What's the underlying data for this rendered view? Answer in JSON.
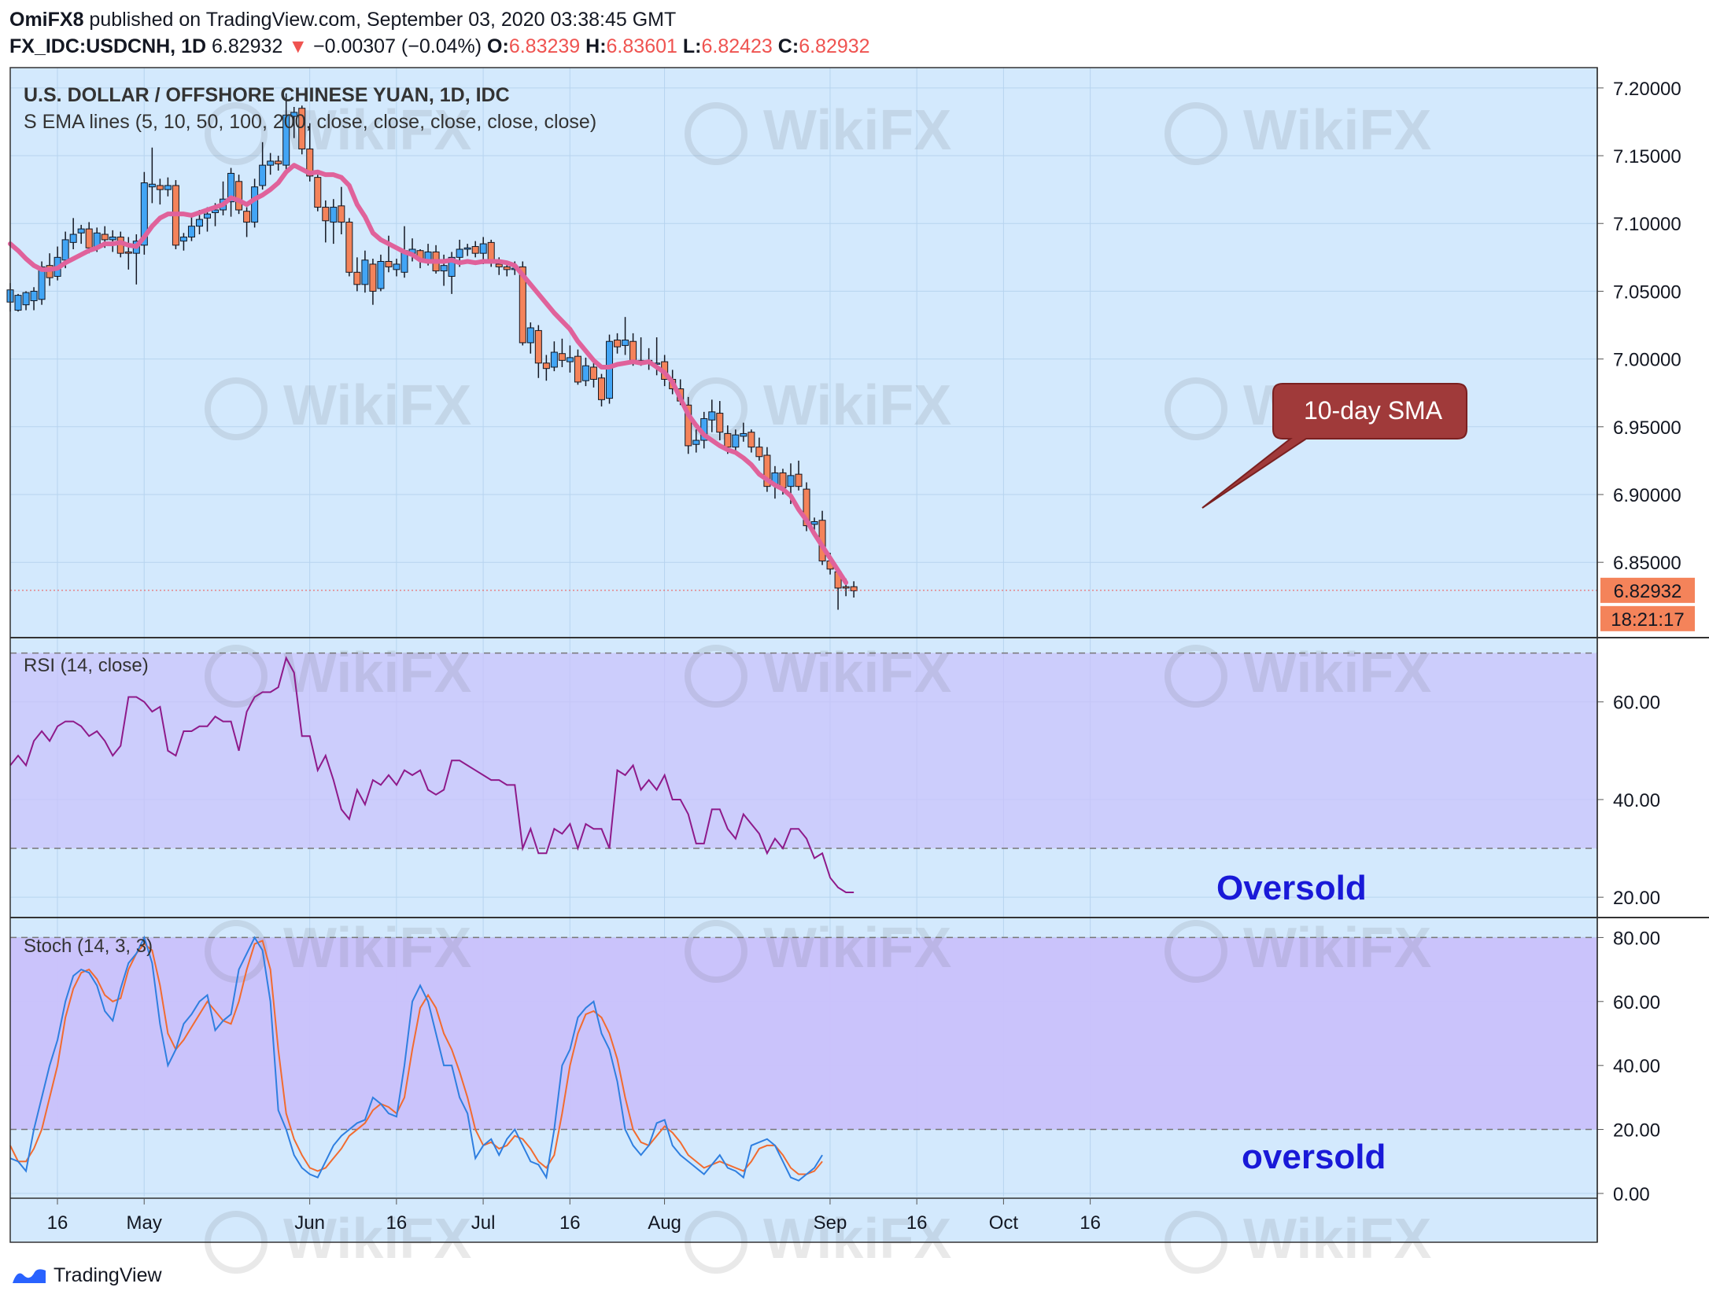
{
  "header": {
    "line1_user": "OmiFX8",
    "line1_rest": " published on TradingView.com, September 03, 2020 03:38:45 GMT",
    "symbol": "FX_IDC:USDCNH, 1D",
    "price": "6.82932",
    "arrow": "▼",
    "change": "−0.00307 (−0.04%)",
    "o_label": "O:",
    "o_value": "6.83239",
    "h_label": "H:",
    "h_value": "6.83601",
    "l_label": "L:",
    "l_value": "6.82423",
    "c_label": "C:",
    "c_value": "6.82932"
  },
  "footer": {
    "brand": "TradingView"
  },
  "watermark_text": "WikiFX",
  "colors": {
    "up": "#42a5f5",
    "down": "#f4835a",
    "sma": "#e0629b",
    "rsi": "#8e1a8a",
    "stoch_k": "#2f7fe0",
    "stoch_d": "#f26b2f",
    "annot_bg": "#a03a3a",
    "annot_text": "#ffffff",
    "oversold_text": "#1919d8",
    "price_label": "#f4835a",
    "bg": "#d3e9fd",
    "band": "#c9c1fb"
  },
  "chart_data": [
    {
      "type": "candlestick",
      "title": "U.S. DOLLAR / OFFSHORE CHINESE YUAN, 1D, IDC",
      "subtitle": "S EMA lines (5, 10, 50, 100, 200, close, close, close, close, close)",
      "ylim": [
        6.795,
        7.215
      ],
      "yticks": [
        "7.20000",
        "7.15000",
        "7.10000",
        "7.05000",
        "7.00000",
        "6.95000",
        "6.90000",
        "6.85000"
      ],
      "last_price_label": "6.82932",
      "last_price": 6.82932,
      "countdown_label": "18:21:17",
      "candles": [
        [
          7.042,
          7.051,
          7.035,
          7.056
        ],
        [
          7.036,
          7.047,
          7.035,
          7.048
        ],
        [
          7.04,
          7.049,
          7.036,
          7.05
        ],
        [
          7.043,
          7.05,
          7.036,
          7.053
        ],
        [
          7.044,
          7.068,
          7.04,
          7.072
        ],
        [
          7.069,
          7.06,
          7.054,
          7.078
        ],
        [
          7.061,
          7.075,
          7.058,
          7.083
        ],
        [
          7.073,
          7.088,
          7.067,
          7.094
        ],
        [
          7.086,
          7.092,
          7.081,
          7.104
        ],
        [
          7.093,
          7.096,
          7.085,
          7.099
        ],
        [
          7.096,
          7.082,
          7.078,
          7.101
        ],
        [
          7.082,
          7.093,
          7.079,
          7.097
        ],
        [
          7.092,
          7.088,
          7.082,
          7.098
        ],
        [
          7.088,
          7.09,
          7.079,
          7.095
        ],
        [
          7.09,
          7.078,
          7.075,
          7.094
        ],
        [
          7.079,
          7.078,
          7.066,
          7.09
        ],
        [
          7.078,
          7.087,
          7.055,
          7.092
        ],
        [
          7.084,
          7.13,
          7.077,
          7.138
        ],
        [
          7.127,
          7.129,
          7.115,
          7.156
        ],
        [
          7.128,
          7.125,
          7.114,
          7.133
        ],
        [
          7.125,
          7.128,
          7.12,
          7.134
        ],
        [
          7.128,
          7.084,
          7.081,
          7.132
        ],
        [
          7.087,
          7.09,
          7.08,
          7.093
        ],
        [
          7.09,
          7.098,
          7.087,
          7.106
        ],
        [
          7.098,
          7.103,
          7.092,
          7.11
        ],
        [
          7.104,
          7.107,
          7.094,
          7.112
        ],
        [
          7.108,
          7.11,
          7.098,
          7.115
        ],
        [
          7.11,
          7.118,
          7.106,
          7.131
        ],
        [
          7.116,
          7.137,
          7.105,
          7.141
        ],
        [
          7.131,
          7.11,
          7.107,
          7.136
        ],
        [
          7.109,
          7.101,
          7.09,
          7.112
        ],
        [
          7.101,
          7.127,
          7.097,
          7.133
        ],
        [
          7.128,
          7.143,
          7.125,
          7.16
        ],
        [
          7.143,
          7.146,
          7.136,
          7.152
        ],
        [
          7.146,
          7.144,
          7.139,
          7.15
        ],
        [
          7.143,
          7.18,
          7.139,
          7.196
        ],
        [
          7.179,
          7.182,
          7.163,
          7.186
        ],
        [
          7.185,
          7.155,
          7.151,
          7.187
        ],
        [
          7.155,
          7.135,
          7.131,
          7.174
        ],
        [
          7.134,
          7.112,
          7.109,
          7.136
        ],
        [
          7.112,
          7.102,
          7.086,
          7.117
        ],
        [
          7.101,
          7.112,
          7.085,
          7.118
        ],
        [
          7.113,
          7.101,
          7.092,
          7.127
        ],
        [
          7.101,
          7.064,
          7.061,
          7.104
        ],
        [
          7.064,
          7.055,
          7.05,
          7.075
        ],
        [
          7.055,
          7.073,
          7.049,
          7.08
        ],
        [
          7.07,
          7.05,
          7.04,
          7.074
        ],
        [
          7.052,
          7.072,
          7.05,
          7.077
        ],
        [
          7.072,
          7.068,
          7.064,
          7.091
        ],
        [
          7.066,
          7.07,
          7.061,
          7.074
        ],
        [
          7.064,
          7.08,
          7.06,
          7.098
        ],
        [
          7.078,
          7.081,
          7.072,
          7.089
        ],
        [
          7.08,
          7.073,
          7.067,
          7.081
        ],
        [
          7.072,
          7.079,
          7.069,
          7.085
        ],
        [
          7.079,
          7.065,
          7.063,
          7.084
        ],
        [
          7.065,
          7.069,
          7.054,
          7.077
        ],
        [
          7.061,
          7.075,
          7.048,
          7.079
        ],
        [
          7.075,
          7.081,
          7.068,
          7.088
        ],
        [
          7.081,
          7.082,
          7.076,
          7.085
        ],
        [
          7.083,
          7.078,
          7.075,
          7.087
        ],
        [
          7.078,
          7.085,
          7.07,
          7.09
        ],
        [
          7.086,
          7.071,
          7.068,
          7.088
        ],
        [
          7.07,
          7.068,
          7.062,
          7.075
        ],
        [
          7.068,
          7.066,
          7.061,
          7.072
        ],
        [
          7.066,
          7.067,
          7.062,
          7.072
        ],
        [
          7.068,
          7.012,
          7.01,
          7.072
        ],
        [
          7.012,
          7.023,
          7.004,
          7.027
        ],
        [
          7.021,
          6.997,
          6.986,
          7.025
        ],
        [
          6.997,
          6.993,
          6.984,
          7.003
        ],
        [
          6.994,
          7.005,
          6.991,
          7.013
        ],
        [
          7.004,
          6.999,
          6.994,
          7.015
        ],
        [
          6.998,
          7.001,
          6.99,
          7.01
        ],
        [
          7.002,
          6.983,
          6.981,
          7.007
        ],
        [
          6.984,
          6.995,
          6.98,
          7.001
        ],
        [
          6.994,
          6.985,
          6.979,
          6.998
        ],
        [
          6.986,
          6.97,
          6.965,
          6.989
        ],
        [
          6.971,
          7.013,
          6.967,
          7.018
        ],
        [
          7.014,
          7.009,
          7.004,
          7.019
        ],
        [
          7.01,
          7.014,
          7.003,
          7.031
        ],
        [
          7.013,
          6.999,
          6.995,
          7.019
        ],
        [
          6.998,
          6.999,
          6.995,
          7.016
        ],
        [
          6.999,
          6.997,
          6.992,
          7.008
        ],
        [
          6.997,
          6.997,
          6.988,
          7.016
        ],
        [
          6.998,
          6.985,
          6.98,
          7.003
        ],
        [
          6.985,
          6.978,
          6.974,
          6.992
        ],
        [
          6.978,
          6.969,
          6.966,
          6.985
        ],
        [
          6.966,
          6.936,
          6.93,
          6.972
        ],
        [
          6.937,
          6.94,
          6.931,
          6.948
        ],
        [
          6.94,
          6.956,
          6.934,
          6.961
        ],
        [
          6.955,
          6.961,
          6.946,
          6.97
        ],
        [
          6.96,
          6.946,
          6.94,
          6.969
        ],
        [
          6.945,
          6.935,
          6.93,
          6.951
        ],
        [
          6.935,
          6.944,
          6.93,
          6.948
        ],
        [
          6.943,
          6.945,
          6.939,
          6.953
        ],
        [
          6.946,
          6.935,
          6.931,
          6.948
        ],
        [
          6.935,
          6.928,
          6.925,
          6.942
        ],
        [
          6.929,
          6.906,
          6.902,
          6.935
        ],
        [
          6.907,
          6.916,
          6.897,
          6.921
        ],
        [
          6.916,
          6.905,
          6.9,
          6.919
        ],
        [
          6.906,
          6.914,
          6.893,
          6.923
        ],
        [
          6.915,
          6.906,
          6.903,
          6.925
        ],
        [
          6.904,
          6.877,
          6.873,
          6.909
        ],
        [
          6.878,
          6.88,
          6.874,
          6.883
        ],
        [
          6.881,
          6.851,
          6.848,
          6.888
        ],
        [
          6.851,
          6.845,
          6.841,
          6.857
        ],
        [
          6.843,
          6.831,
          6.815,
          6.846
        ],
        [
          6.832,
          6.831,
          6.825,
          6.838
        ],
        [
          6.832,
          6.829,
          6.824,
          6.836
        ]
      ],
      "sma": [
        7.085,
        7.08,
        7.074,
        7.069,
        7.066,
        7.066,
        7.067,
        7.071,
        7.074,
        7.077,
        7.08,
        7.082,
        7.085,
        7.085,
        7.086,
        7.084,
        7.083,
        7.09,
        7.098,
        7.104,
        7.107,
        7.107,
        7.107,
        7.106,
        7.108,
        7.11,
        7.112,
        7.114,
        7.119,
        7.117,
        7.114,
        7.118,
        7.121,
        7.125,
        7.13,
        7.138,
        7.143,
        7.14,
        7.137,
        7.138,
        7.136,
        7.136,
        7.134,
        7.128,
        7.114,
        7.105,
        7.093,
        7.088,
        7.085,
        7.082,
        7.079,
        7.077,
        7.073,
        7.072,
        7.072,
        7.072,
        7.073,
        7.071,
        7.072,
        7.071,
        7.072,
        7.072,
        7.072,
        7.071,
        7.069,
        7.062,
        7.055,
        7.048,
        7.041,
        7.034,
        7.028,
        7.022,
        7.013,
        7.006,
        6.999,
        6.994,
        6.994,
        6.996,
        6.997,
        6.998,
        6.997,
        6.998,
        6.994,
        6.99,
        6.983,
        6.971,
        6.959,
        6.951,
        6.944,
        6.94,
        6.936,
        6.933,
        6.931,
        6.927,
        6.922,
        6.915,
        6.911,
        6.907,
        6.904,
        6.899,
        6.889,
        6.881,
        6.871,
        6.862,
        6.853,
        6.844,
        6.835
      ],
      "annotation": "10-day SMA"
    },
    {
      "type": "line",
      "title": "RSI (14, close)",
      "ylim": [
        16,
        73
      ],
      "yticks": [
        "60.00",
        "40.00",
        "20.00"
      ],
      "upper_band": 70,
      "lower_band": 30,
      "values": [
        47,
        49,
        47,
        52,
        54,
        52,
        55,
        56,
        56,
        55,
        53,
        54,
        52,
        49,
        51,
        61,
        61,
        60,
        58,
        59,
        50,
        49,
        54,
        54,
        55,
        55,
        57,
        56,
        56,
        50,
        58,
        61,
        62,
        62,
        63,
        69,
        66,
        53,
        53,
        46,
        49,
        44,
        38,
        36,
        42,
        39,
        44,
        43,
        45,
        43,
        46,
        45,
        46,
        42,
        41,
        42,
        48,
        48,
        47,
        46,
        45,
        44,
        44,
        43,
        43,
        30,
        34,
        29,
        29,
        34,
        33,
        35,
        30,
        35,
        34,
        34,
        30,
        46,
        45,
        47,
        42,
        44,
        42,
        45,
        40,
        40,
        37,
        31,
        31,
        38,
        38,
        34,
        32,
        37,
        35,
        33,
        29,
        32,
        30,
        34,
        34,
        32,
        28,
        29,
        24,
        22,
        21,
        21
      ],
      "annotation": "Oversold"
    },
    {
      "type": "line",
      "title": "Stoch (14, 3, 3)",
      "ylim": [
        -1,
        86
      ],
      "yticks": [
        "80.00",
        "60.00",
        "40.00",
        "20.00",
        "0.00"
      ],
      "upper_band": 80,
      "lower_band": 20,
      "series": [
        {
          "values": [
            11,
            10,
            7,
            20,
            30,
            40,
            48,
            60,
            68,
            70,
            69,
            65,
            57,
            54,
            64,
            72,
            75,
            80,
            72,
            53,
            40,
            45,
            53,
            56,
            60,
            62,
            51,
            54,
            56,
            70,
            75,
            80,
            76,
            60,
            26,
            20,
            12,
            8,
            6,
            5,
            10,
            15,
            18,
            20,
            22,
            23,
            30,
            28,
            25,
            24,
            40,
            60,
            65,
            60,
            50,
            40,
            40,
            30,
            25,
            11,
            15,
            17,
            12,
            17,
            20,
            15,
            10,
            9,
            5,
            20,
            40,
            45,
            55,
            58,
            60,
            50,
            45,
            35,
            20,
            15,
            12,
            15,
            22,
            23,
            15,
            12,
            10,
            8,
            6,
            9,
            12,
            8,
            7,
            5,
            15,
            16,
            17,
            15,
            10,
            5,
            4,
            6,
            8,
            12
          ]
        },
        {
          "values": [
            15,
            10,
            10,
            14,
            20,
            30,
            40,
            55,
            64,
            69,
            70,
            67,
            62,
            60,
            61,
            70,
            75,
            78,
            76,
            65,
            50,
            45,
            48,
            52,
            56,
            60,
            57,
            54,
            53,
            60,
            70,
            78,
            79,
            70,
            45,
            25,
            17,
            12,
            8,
            7,
            8,
            11,
            14,
            18,
            20,
            22,
            26,
            28,
            27,
            25,
            30,
            45,
            58,
            62,
            58,
            50,
            45,
            38,
            30,
            20,
            15,
            16,
            14,
            15,
            18,
            17,
            14,
            10,
            8,
            12,
            25,
            40,
            50,
            56,
            57,
            55,
            50,
            42,
            30,
            20,
            16,
            15,
            18,
            21,
            19,
            16,
            12,
            10,
            8,
            9,
            10,
            9,
            8,
            7,
            10,
            14,
            15,
            15,
            12,
            8,
            6,
            6,
            7,
            10
          ]
        }
      ],
      "annotation": "oversold"
    }
  ],
  "x_axis": {
    "ticks": [
      {
        "label": "16",
        "i": 0
      },
      {
        "label": "May",
        "i": 11
      },
      {
        "label": "Jun",
        "i": 32
      },
      {
        "label": "16",
        "i": 43
      },
      {
        "label": "Jul",
        "i": 54
      },
      {
        "label": "16",
        "i": 65
      },
      {
        "label": "Aug",
        "i": 77
      },
      {
        "label": "Sep",
        "i": 98
      },
      {
        "label": "16",
        "i": 109
      },
      {
        "label": "Oct",
        "i": 120
      },
      {
        "label": "16",
        "i": 131
      }
    ]
  }
}
